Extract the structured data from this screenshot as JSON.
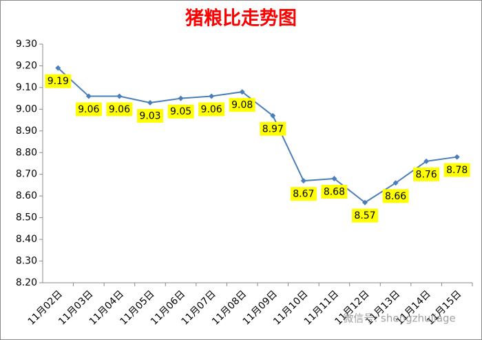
{
  "chart_data": {
    "type": "line",
    "title": "猪粮比走势图",
    "categories": [
      "11月02日",
      "11月03日",
      "11月04日",
      "11月05日",
      "11月06日",
      "11月07日",
      "11月08日",
      "11月09日",
      "11月10日",
      "11月11日",
      "11月12日",
      "11月13日",
      "11月14日",
      "11月15日"
    ],
    "values": [
      9.19,
      9.06,
      9.06,
      9.03,
      9.05,
      9.06,
      9.08,
      8.97,
      8.67,
      8.68,
      8.57,
      8.66,
      8.76,
      8.78
    ],
    "color": "#4a7ebb",
    "label_color": "#ffff00",
    "ylim": [
      8.2,
      9.3
    ],
    "yticks": [
      {
        "value": 8.2,
        "label": "8.20"
      },
      {
        "value": 8.3,
        "label": "8.30"
      },
      {
        "value": 8.4,
        "label": "8.40"
      },
      {
        "value": 8.5,
        "label": "8.50"
      },
      {
        "value": 8.6,
        "label": "8.60"
      },
      {
        "value": 8.7,
        "label": "8.70"
      },
      {
        "value": 8.8,
        "label": "8.80"
      },
      {
        "value": 8.9,
        "label": "8.90"
      },
      {
        "value": 9.0,
        "label": "9.00"
      },
      {
        "value": 9.1,
        "label": "9.10"
      },
      {
        "value": 9.2,
        "label": "9.20"
      },
      {
        "value": 9.3,
        "label": "9.30"
      }
    ],
    "grid": false,
    "watermark": "微信号: shengzhujiage"
  }
}
